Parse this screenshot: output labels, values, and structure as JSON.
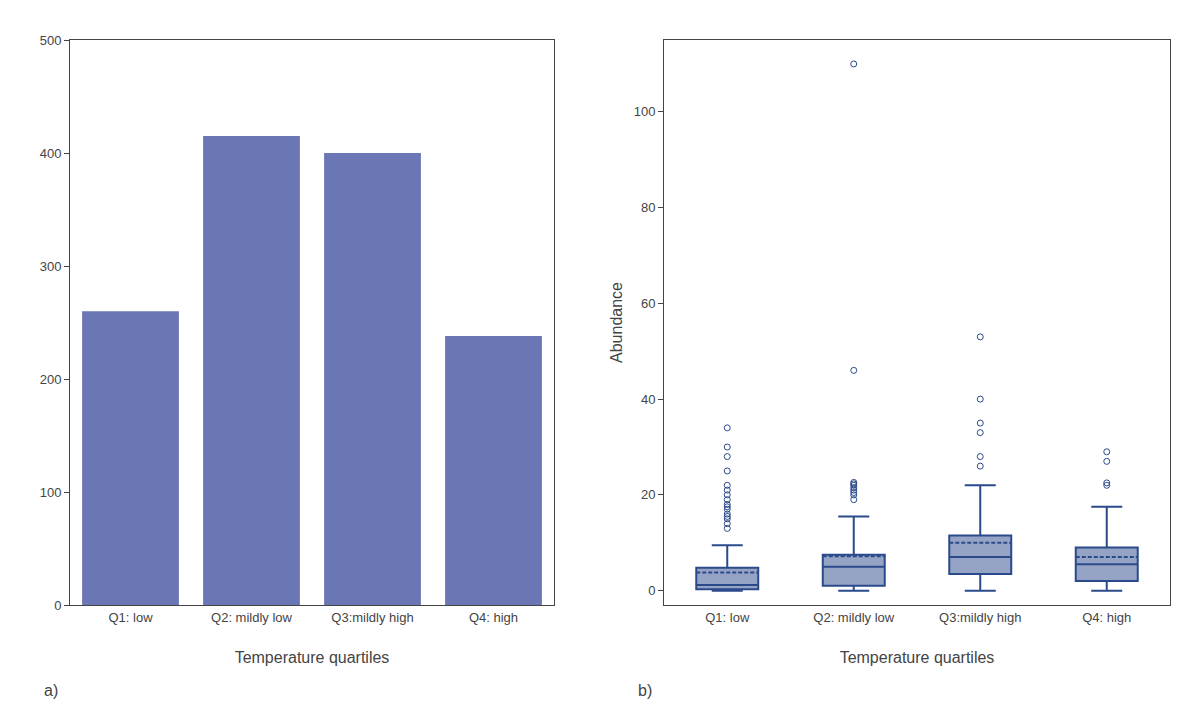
{
  "chart_data": [
    {
      "type": "bar",
      "annotations": [
        "a)"
      ],
      "categories": [
        "Q1: low",
        "Q2: mildly low",
        "Q3:mildly high",
        "Q4: high"
      ],
      "values": [
        260,
        415,
        400,
        238
      ],
      "color": "#6b76b5",
      "xlabel": "Temperature quartiles",
      "ylim": [
        0,
        500
      ],
      "yticks": [
        0,
        100,
        200,
        300,
        400,
        500
      ],
      "grid": false
    },
    {
      "type": "box",
      "annotations": [
        "b)"
      ],
      "categories": [
        "Q1: low",
        "Q2: mildly low",
        "Q3:mildly high",
        "Q4: high"
      ],
      "boxes": [
        {
          "q1": 0.3,
          "median": 1.2,
          "q3": 4.8,
          "whisker_low": 0.0,
          "whisker_high": 9.5,
          "mean": 3.8,
          "outliers": [
            13,
            14,
            15,
            15.5,
            16,
            17,
            17.5,
            18,
            19,
            20,
            21,
            22,
            25,
            28,
            30,
            34
          ]
        },
        {
          "q1": 1.0,
          "median": 5.0,
          "q3": 7.5,
          "whisker_low": 0.0,
          "whisker_high": 15.5,
          "mean": 7.2,
          "outliers": [
            19,
            20,
            20.5,
            21,
            21.5,
            22,
            22.3,
            22.6,
            46,
            110
          ]
        },
        {
          "q1": 3.5,
          "median": 7.0,
          "q3": 11.5,
          "whisker_low": 0.0,
          "whisker_high": 22.0,
          "mean": 10.0,
          "outliers": [
            26,
            28,
            33,
            35,
            40,
            53
          ]
        },
        {
          "q1": 2.0,
          "median": 5.5,
          "q3": 9.0,
          "whisker_low": 0.0,
          "whisker_high": 17.5,
          "mean": 7.0,
          "outliers": [
            22,
            22.5,
            27,
            29
          ]
        }
      ],
      "color": "#2b4a8c",
      "marker": "circle-open",
      "xlabel": "Temperature quartiles",
      "ylabel": "Abundance",
      "ylim": [
        -3,
        115
      ],
      "yticks": [
        0,
        20,
        40,
        60,
        80,
        100
      ],
      "grid": false
    }
  ]
}
